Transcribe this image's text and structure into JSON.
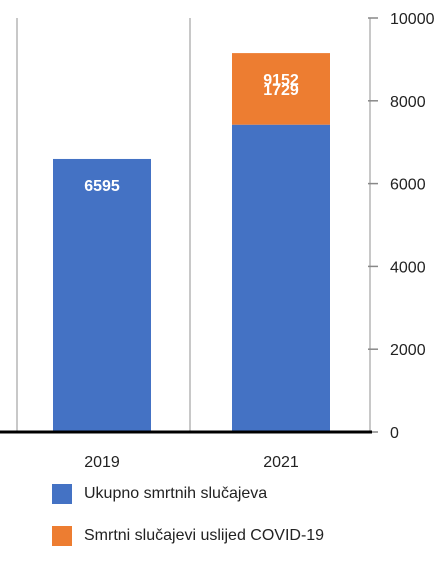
{
  "chart_data": {
    "type": "bar",
    "stacked": true,
    "categories": [
      "2019",
      "2021"
    ],
    "series": [
      {
        "name": "Ukupno smrtnih slučajeva",
        "color": "#4472C4",
        "values": [
          6595,
          7423
        ]
      },
      {
        "name": "Smrtni slučajevi uslijed COVID-19",
        "color": "#ED7D31",
        "values": [
          0,
          1729
        ]
      }
    ],
    "data_labels": [
      {
        "category": "2019",
        "series": "Ukupno smrtnih slučajeva",
        "text": "6595"
      },
      {
        "category": "2021",
        "series": "Ukupno smrtnih slučajeva",
        "text": "9152"
      },
      {
        "category": "2021",
        "series": "Smrtni slučajevi uslijed COVID-19",
        "text": "1729"
      }
    ],
    "yaxis_side": "right",
    "ylim": [
      0,
      10000
    ],
    "yticks": [
      "0",
      "2000",
      "4000",
      "6000",
      "8000",
      "10000"
    ],
    "grid": "vertical-separators",
    "legend_position": "bottom",
    "title": "",
    "xlabel": "",
    "ylabel": ""
  }
}
